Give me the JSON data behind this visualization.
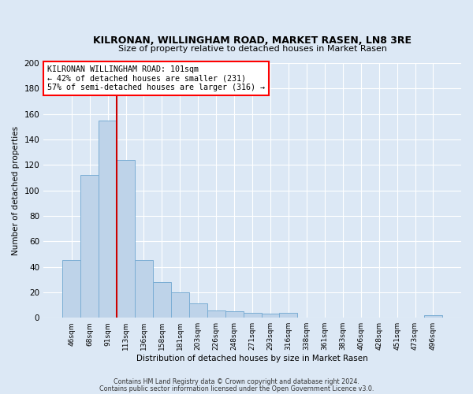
{
  "title": "KILRONAN, WILLINGHAM ROAD, MARKET RASEN, LN8 3RE",
  "subtitle": "Size of property relative to detached houses in Market Rasen",
  "xlabel": "Distribution of detached houses by size in Market Rasen",
  "ylabel": "Number of detached properties",
  "bar_labels": [
    "46sqm",
    "68sqm",
    "91sqm",
    "113sqm",
    "136sqm",
    "158sqm",
    "181sqm",
    "203sqm",
    "226sqm",
    "248sqm",
    "271sqm",
    "293sqm",
    "316sqm",
    "338sqm",
    "361sqm",
    "383sqm",
    "406sqm",
    "428sqm",
    "451sqm",
    "473sqm",
    "496sqm"
  ],
  "bar_values": [
    45,
    112,
    155,
    124,
    45,
    28,
    20,
    11,
    6,
    5,
    4,
    3,
    4,
    0,
    0,
    0,
    0,
    0,
    0,
    0,
    2
  ],
  "bar_color": "#bed3e9",
  "bar_edge_color": "#7aadd4",
  "vline_x_index": 2,
  "vline_color": "#cc0000",
  "ylim": [
    0,
    200
  ],
  "yticks": [
    0,
    20,
    40,
    60,
    80,
    100,
    120,
    140,
    160,
    180,
    200
  ],
  "annotation_title": "KILRONAN WILLINGHAM ROAD: 101sqm",
  "annotation_line1": "← 42% of detached houses are smaller (231)",
  "annotation_line2": "57% of semi-detached houses are larger (316) →",
  "bg_color": "#dce8f5",
  "grid_color": "#ffffff",
  "footer1": "Contains HM Land Registry data © Crown copyright and database right 2024.",
  "footer2": "Contains public sector information licensed under the Open Government Licence v3.0."
}
